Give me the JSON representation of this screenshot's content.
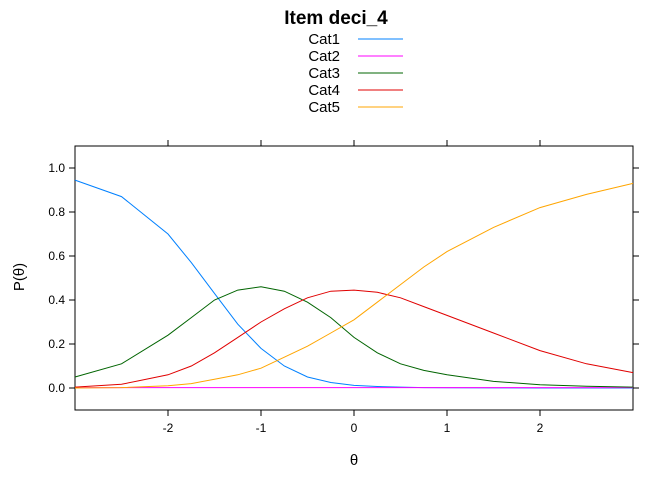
{
  "chart_data": {
    "type": "line",
    "title": "Item deci_4",
    "xlabel": "θ",
    "ylabel": "P(θ)",
    "xlim": [
      -3,
      3
    ],
    "ylim": [
      -0.1,
      1.1
    ],
    "xticks": [
      -2,
      -1,
      0,
      1,
      2
    ],
    "yticks": [
      0.0,
      0.2,
      0.4,
      0.6,
      0.8,
      1.0
    ],
    "xtick_labels": [
      "-2",
      "-1",
      "0",
      "1",
      "2"
    ],
    "ytick_labels": [
      "0.0",
      "0.2",
      "0.4",
      "0.6",
      "0.8",
      "1.0"
    ],
    "legend_position": "top",
    "x": [
      -3,
      -2.5,
      -2,
      -1.75,
      -1.5,
      -1.25,
      -1,
      -0.75,
      -0.5,
      -0.25,
      0,
      0.25,
      0.5,
      0.75,
      1,
      1.5,
      2,
      2.5,
      3
    ],
    "series": [
      {
        "name": "Cat1",
        "color": "#0080ff",
        "values": [
          0.945,
          0.87,
          0.7,
          0.57,
          0.43,
          0.29,
          0.18,
          0.1,
          0.05,
          0.025,
          0.012,
          0.007,
          0.004,
          0.002,
          0.001,
          0.0005,
          0.0002,
          0.0001,
          0.0
        ]
      },
      {
        "name": "Cat2",
        "color": "#ff00ff",
        "values": [
          0.002,
          0.002,
          0.002,
          0.002,
          0.002,
          0.002,
          0.002,
          0.002,
          0.002,
          0.002,
          0.002,
          0.002,
          0.002,
          0.002,
          0.002,
          0.002,
          0.002,
          0.002,
          0.002
        ]
      },
      {
        "name": "Cat3",
        "color": "#006400",
        "values": [
          0.05,
          0.11,
          0.24,
          0.32,
          0.4,
          0.445,
          0.46,
          0.44,
          0.39,
          0.32,
          0.23,
          0.16,
          0.11,
          0.08,
          0.06,
          0.03,
          0.015,
          0.008,
          0.004
        ]
      },
      {
        "name": "Cat4",
        "color": "#e00000",
        "values": [
          0.004,
          0.017,
          0.06,
          0.1,
          0.16,
          0.23,
          0.3,
          0.36,
          0.41,
          0.44,
          0.445,
          0.435,
          0.41,
          0.37,
          0.33,
          0.25,
          0.17,
          0.11,
          0.07
        ]
      },
      {
        "name": "Cat5",
        "color": "#ffa500",
        "values": [
          0.0,
          0.002,
          0.01,
          0.02,
          0.04,
          0.06,
          0.09,
          0.14,
          0.19,
          0.25,
          0.31,
          0.39,
          0.47,
          0.55,
          0.62,
          0.73,
          0.82,
          0.88,
          0.93
        ]
      }
    ]
  }
}
